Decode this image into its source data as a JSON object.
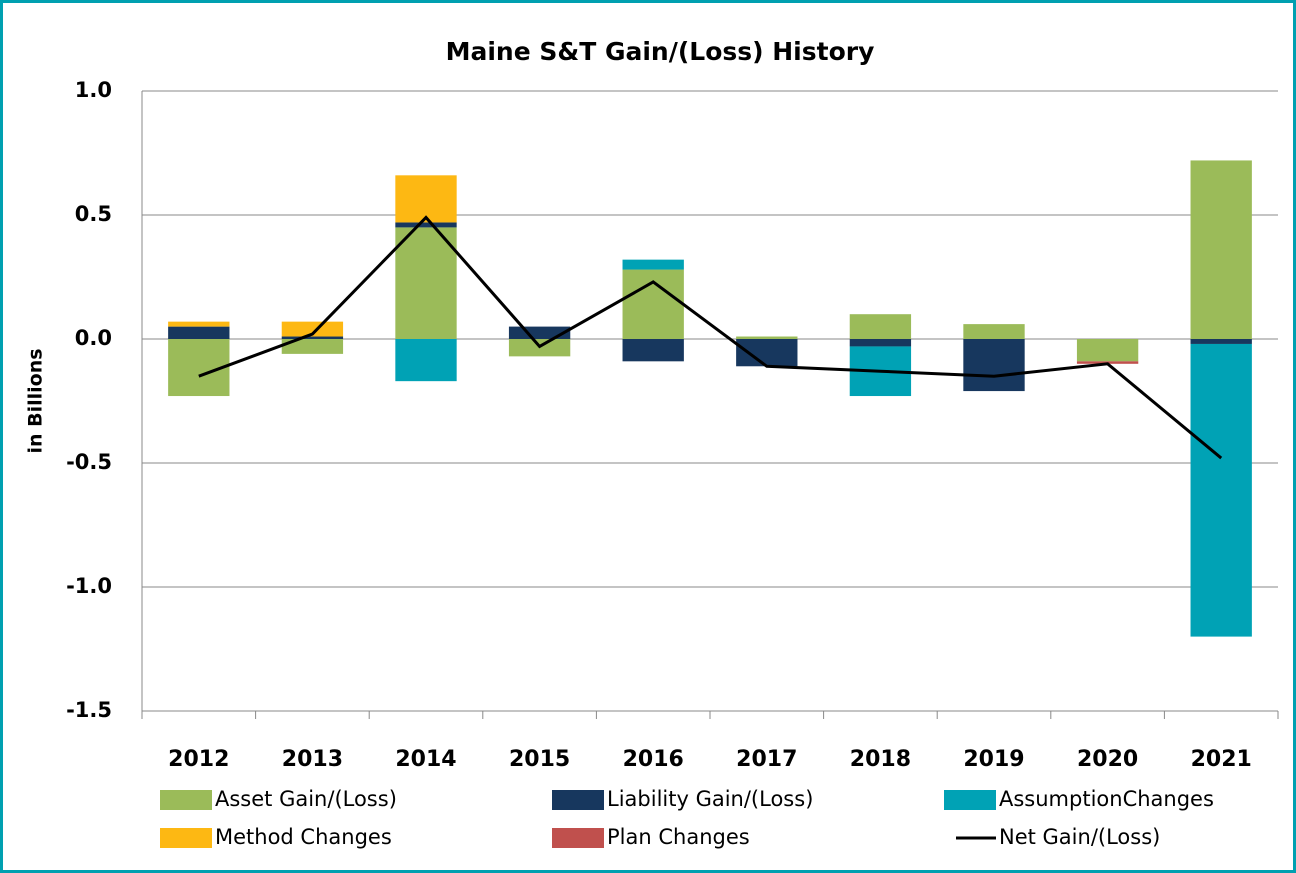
{
  "chart_data": {
    "type": "bar",
    "stacked": true,
    "title": "Maine S&T Gain/(Loss) History",
    "y_label": "in Billions",
    "categories": [
      "2012",
      "2013",
      "2014",
      "2015",
      "2016",
      "2017",
      "2018",
      "2019",
      "2020",
      "2021"
    ],
    "series": [
      {
        "name": "Asset Gain/(Loss)",
        "color": "#9bbb59",
        "values": [
          -0.23,
          -0.06,
          0.45,
          -0.07,
          0.28,
          0.01,
          0.1,
          0.06,
          -0.09,
          0.72
        ]
      },
      {
        "name": "Liability Gain/(Loss)",
        "color": "#17375e",
        "values": [
          0.05,
          0.01,
          0.02,
          0.05,
          -0.09,
          -0.11,
          -0.03,
          -0.21,
          0,
          -0.02
        ]
      },
      {
        "name": "AssumptionChanges",
        "color": "#00a2b5",
        "values": [
          0,
          0,
          -0.17,
          0,
          0.04,
          0,
          -0.2,
          0,
          0,
          -1.18
        ]
      },
      {
        "name": "Method Changes",
        "color": "#fdb813",
        "values": [
          0.02,
          0.06,
          0.19,
          0,
          0,
          0,
          0,
          0,
          0,
          0
        ]
      },
      {
        "name": "Plan Changes",
        "color": "#c0504d",
        "values": [
          0,
          0,
          0,
          0,
          0,
          0,
          0,
          0,
          -0.01,
          0
        ]
      },
      {
        "name": "Net Gain/(Loss)",
        "color": "#000000",
        "type": "line",
        "values": [
          -0.15,
          0.02,
          0.49,
          -0.03,
          0.23,
          -0.11,
          -0.13,
          -0.15,
          -0.1,
          -0.48
        ]
      }
    ],
    "ylim": [
      -1.5,
      1
    ],
    "yticks": [
      {
        "value": -1.5,
        "label": "-1.5"
      },
      {
        "value": -1,
        "label": "-1.0"
      },
      -0.5,
      {
        "value": 0,
        "label": "0.0"
      },
      0.5,
      {
        "value": 1,
        "label": "1.0"
      }
    ],
    "grid": true,
    "legend": "bottom"
  }
}
